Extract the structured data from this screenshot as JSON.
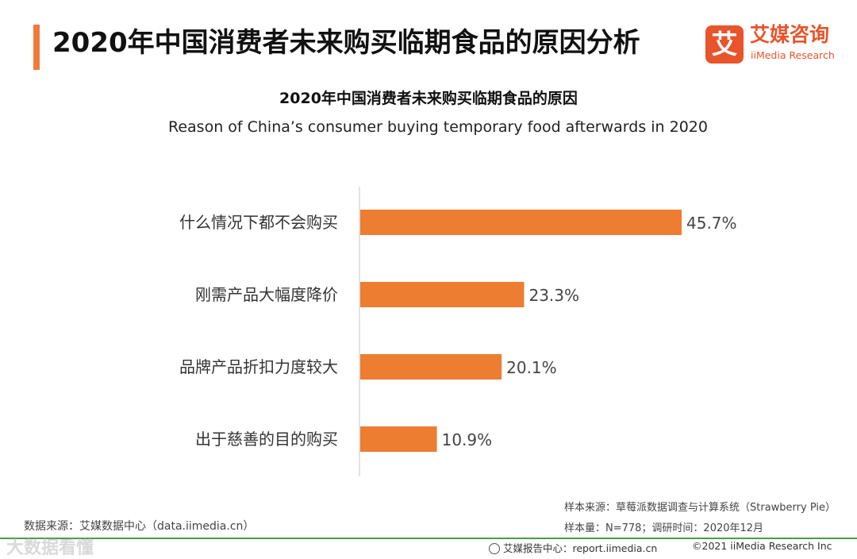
{
  "header": {
    "title": "2020年中国消费者未来购买临期食品的原因分析"
  },
  "logo": {
    "glyph": "艾",
    "name_cn": "艾媒咨询",
    "name_en": "iiMedia Research",
    "color": "#e8542b"
  },
  "chart_data": {
    "type": "bar",
    "orientation": "horizontal",
    "title": "2020年中国消费者未来购买临期食品的原因",
    "subtitle": "Reason of China’s consumer buying temporary food afterwards in 2020",
    "categories": [
      "什么情况下都不会购买",
      "刚需产品大幅度降价",
      "品牌产品折扣力度较大",
      "出于慈善的目的购买"
    ],
    "values": [
      45.7,
      23.3,
      20.1,
      10.9
    ],
    "value_labels": [
      "45.7%",
      "23.3%",
      "20.1%",
      "10.9%"
    ],
    "unit": "%",
    "xlim": [
      0,
      50
    ],
    "grid": false,
    "bar_color": "#ed7d31"
  },
  "footer": {
    "source_left": "数据来源：艾媒数据中心（data.iimedia.cn）",
    "sample_source": "样本来源：草莓派数据调查与计算系统（Strawberry Pie）",
    "sample_size": "样本量：N=778；调研时间：2020年12月",
    "watermark": "大数据看懂",
    "report_center": "艾媒报告中心：report.iimedia.cn",
    "copyright": "©2021 iiMedia Research Inc",
    "line_color": "#4d9a4a"
  }
}
